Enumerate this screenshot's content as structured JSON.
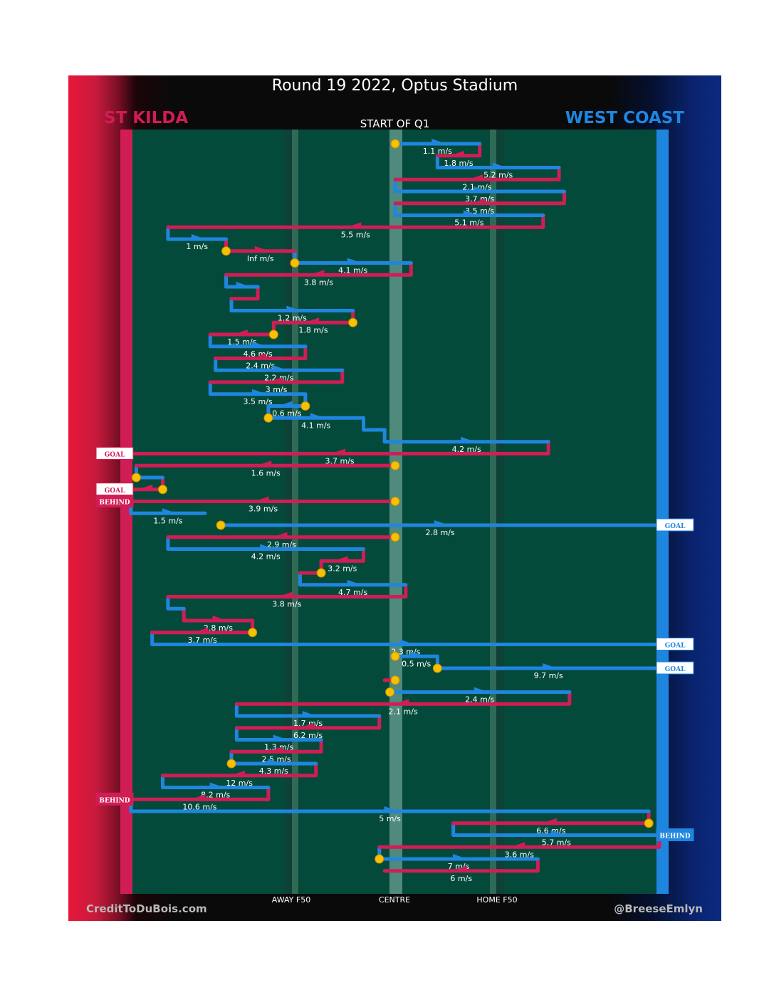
{
  "header": {
    "title": "Round 19 2022, Optus Stadium",
    "home_team": "ST KILDA",
    "away_team": "WEST COAST",
    "period_label": "START OF Q1"
  },
  "field_labels": {
    "away_f50": "AWAY F50",
    "centre": "CENTRE",
    "home_f50": "HOME F50"
  },
  "footer": {
    "credit_left": "CreditToDuBois.com",
    "credit_right": "@BreeseEmlyn"
  },
  "colors": {
    "home": "#d11d55",
    "away": "#1f86e0",
    "field": "#044a3b",
    "marker": "#f5c200"
  },
  "chart_data": {
    "type": "chain",
    "title": "Round 19 2022, Optus Stadium",
    "subtitle": "START OF Q1",
    "x_axis_ticks": [
      "AWAY F50",
      "CENTRE",
      "HOME F50"
    ],
    "x_range": [
      0,
      100
    ],
    "note": "x is field position in percent, 0 = St Kilda (left) goal line, 100 = West Coast (right) goal line; row = sequence index top to bottom",
    "segments": [
      {
        "row": 0,
        "team": "away",
        "from": 50,
        "to": 66,
        "speed": "1.1 m/s",
        "start_marker": true
      },
      {
        "row": 1,
        "team": "home",
        "from": 66,
        "to": 58,
        "speed": "1.8 m/s"
      },
      {
        "row": 2,
        "team": "away",
        "from": 58,
        "to": 81,
        "speed": "5.2 m/s"
      },
      {
        "row": 3,
        "team": "home",
        "from": 81,
        "to": 50,
        "speed": "2.1 m/s"
      },
      {
        "row": 4,
        "team": "away",
        "from": 50,
        "to": 82,
        "speed": "3.7 m/s"
      },
      {
        "row": 5,
        "team": "home",
        "from": 82,
        "to": 50,
        "speed": "3.5 m/s"
      },
      {
        "row": 6,
        "team": "away",
        "from": 50,
        "to": 78,
        "speed": "5.1 m/s"
      },
      {
        "row": 7,
        "team": "home",
        "from": 78,
        "to": 7,
        "speed": "5.5 m/s"
      },
      {
        "row": 8,
        "team": "away",
        "from": 7,
        "to": 18,
        "speed": "1 m/s"
      },
      {
        "row": 9,
        "team": "home",
        "from": 18,
        "to": 31,
        "speed": "Inf m/s",
        "start_marker": true
      },
      {
        "row": 10,
        "team": "away",
        "from": 31,
        "to": 53,
        "speed": "4.1 m/s",
        "start_marker": true
      },
      {
        "row": 11,
        "team": "home",
        "from": 53,
        "to": 18,
        "speed": "3.8 m/s"
      },
      {
        "row": 12,
        "team": "away",
        "from": 18,
        "to": 24,
        "speed": ""
      },
      {
        "row": 13,
        "team": "home",
        "from": 24,
        "to": 19,
        "speed": ""
      },
      {
        "row": 14,
        "team": "away",
        "from": 19,
        "to": 42,
        "speed": "1.2 m/s"
      },
      {
        "row": 15,
        "team": "home",
        "from": 42,
        "to": 27,
        "speed": "1.8 m/s",
        "start_marker": true
      },
      {
        "row": 16,
        "team": "home",
        "from": 27,
        "to": 15,
        "speed": "1.5 m/s",
        "start_marker": true
      },
      {
        "row": 17,
        "team": "away",
        "from": 15,
        "to": 33,
        "speed": "4.6 m/s"
      },
      {
        "row": 18,
        "team": "home",
        "from": 33,
        "to": 16,
        "speed": "2.4 m/s"
      },
      {
        "row": 19,
        "team": "away",
        "from": 16,
        "to": 40,
        "speed": "2.2 m/s"
      },
      {
        "row": 20,
        "team": "home",
        "from": 40,
        "to": 15,
        "speed": "3 m/s"
      },
      {
        "row": 21,
        "team": "away",
        "from": 15,
        "to": 33,
        "speed": "3.5 m/s"
      },
      {
        "row": 22,
        "team": "away",
        "from": 33,
        "to": 26,
        "speed": "0.6 m/s",
        "start_marker": true
      },
      {
        "row": 23,
        "team": "away",
        "from": 26,
        "to": 44,
        "speed": "4.1 m/s",
        "start_marker": true
      },
      {
        "row": 24,
        "team": "away",
        "from": 44,
        "to": 48,
        "speed": ""
      },
      {
        "row": 25,
        "team": "away",
        "from": 48,
        "to": 79,
        "speed": "4.2 m/s"
      },
      {
        "row": 26,
        "team": "home",
        "from": 79,
        "to": 0,
        "speed": "3.7 m/s",
        "result": "GOAL"
      },
      {
        "row": 27,
        "team": "home",
        "from": 50,
        "to": 1,
        "speed": "1.6 m/s",
        "start_marker": true
      },
      {
        "row": 28,
        "team": "away",
        "from": 1,
        "to": 6,
        "speed": "",
        "start_marker": true
      },
      {
        "row": 29,
        "team": "home",
        "from": 6,
        "to": 0,
        "speed": "",
        "start_marker": true,
        "result": "GOAL"
      },
      {
        "row": 30,
        "team": "home",
        "from": 50,
        "to": 0,
        "speed": "3.9 m/s",
        "start_marker": true,
        "result": "BEHIND"
      },
      {
        "row": 31,
        "team": "away",
        "from": 0,
        "to": 14,
        "speed": "1.5 m/s"
      },
      {
        "row": 32,
        "team": "away",
        "from": 17,
        "to": 100,
        "speed": "2.8 m/s",
        "start_marker": true,
        "result": "GOAL"
      },
      {
        "row": 33,
        "team": "home",
        "from": 50,
        "to": 7,
        "speed": "2.9 m/s",
        "start_marker": true
      },
      {
        "row": 34,
        "team": "away",
        "from": 7,
        "to": 44,
        "speed": "4.2 m/s"
      },
      {
        "row": 35,
        "team": "home",
        "from": 44,
        "to": 36,
        "speed": "3.2 m/s"
      },
      {
        "row": 36,
        "team": "home",
        "from": 36,
        "to": 32,
        "speed": "",
        "start_marker": true
      },
      {
        "row": 37,
        "team": "away",
        "from": 32,
        "to": 52,
        "speed": "4.7 m/s"
      },
      {
        "row": 38,
        "team": "home",
        "from": 52,
        "to": 7,
        "speed": "3.8 m/s"
      },
      {
        "row": 39,
        "team": "away",
        "from": 7,
        "to": 10,
        "speed": ""
      },
      {
        "row": 40,
        "team": "home",
        "from": 10,
        "to": 23,
        "speed": "2.8 m/s"
      },
      {
        "row": 41,
        "team": "home",
        "from": 23,
        "to": 4,
        "speed": "3.7 m/s",
        "start_marker": true
      },
      {
        "row": 42,
        "team": "away",
        "from": 4,
        "to": 100,
        "speed": "2.3 m/s",
        "result": "GOAL"
      },
      {
        "row": 43,
        "team": "away",
        "from": 50,
        "to": 58,
        "speed": "0.5 m/s",
        "start_marker": true
      },
      {
        "row": 44,
        "team": "away",
        "from": 58,
        "to": 100,
        "speed": "9.7 m/s",
        "start_marker": true,
        "result": "GOAL"
      },
      {
        "row": 45,
        "team": "home",
        "from": 50,
        "to": 48,
        "speed": "",
        "start_marker": true
      },
      {
        "row": 46,
        "team": "away",
        "from": 49,
        "to": 83,
        "speed": "2.4 m/s",
        "start_marker": true
      },
      {
        "row": 47,
        "team": "home",
        "from": 83,
        "to": 20,
        "speed": "2.1 m/s"
      },
      {
        "row": 48,
        "team": "away",
        "from": 20,
        "to": 47,
        "speed": "1.7 m/s"
      },
      {
        "row": 49,
        "team": "home",
        "from": 47,
        "to": 20,
        "speed": "6.2 m/s"
      },
      {
        "row": 50,
        "team": "away",
        "from": 20,
        "to": 36,
        "speed": "1.3 m/s"
      },
      {
        "row": 51,
        "team": "home",
        "from": 36,
        "to": 19,
        "speed": "2.5 m/s"
      },
      {
        "row": 52,
        "team": "away",
        "from": 19,
        "to": 35,
        "speed": "4.3 m/s",
        "start_marker": true
      },
      {
        "row": 53,
        "team": "home",
        "from": 35,
        "to": 6,
        "speed": "12 m/s"
      },
      {
        "row": 54,
        "team": "away",
        "from": 6,
        "to": 26,
        "speed": "8.2 m/s"
      },
      {
        "row": 55,
        "team": "home",
        "from": 26,
        "to": 0,
        "speed": "10.6 m/s",
        "result": "BEHIND"
      },
      {
        "row": 56,
        "team": "away",
        "from": 0,
        "to": 98,
        "speed": "5 m/s"
      },
      {
        "row": 57,
        "team": "home",
        "from": 98,
        "to": 61,
        "speed": "6.6 m/s",
        "start_marker": true
      },
      {
        "row": 58,
        "team": "away",
        "from": 61,
        "to": 100,
        "speed": "5.7 m/s",
        "result": "BEHIND"
      },
      {
        "row": 59,
        "team": "home",
        "from": 100,
        "to": 47,
        "speed": "3.6 m/s"
      },
      {
        "row": 60,
        "team": "away",
        "from": 47,
        "to": 77,
        "speed": "7 m/s",
        "start_marker": true
      },
      {
        "row": 61,
        "team": "home",
        "from": 77,
        "to": 48,
        "speed": "6 m/s"
      }
    ]
  }
}
